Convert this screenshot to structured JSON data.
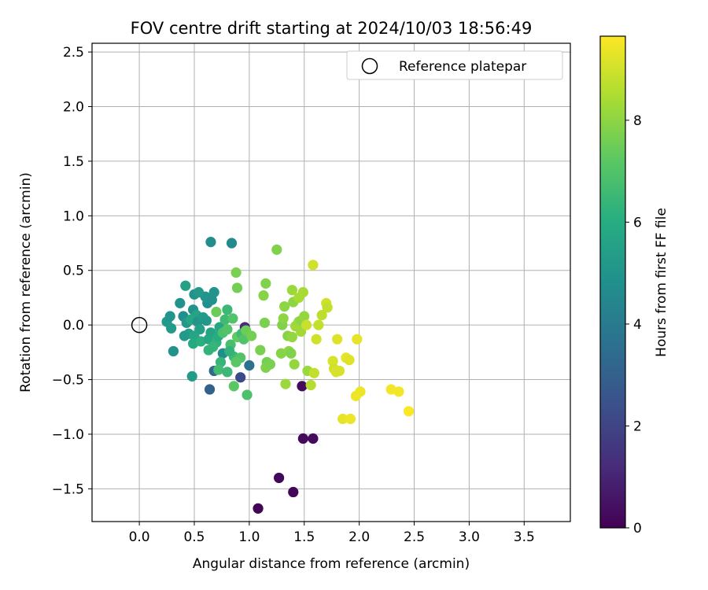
{
  "chart_data": {
    "type": "scatter",
    "title": "FOV centre drift starting at 2024/10/03 18:56:49",
    "xlabel": "Angular distance from reference (arcmin)",
    "ylabel": "Rotation from reference (arcmin)",
    "colorbar_label": "Hours from first FF file",
    "xlim": [
      -0.43,
      3.92
    ],
    "ylim": [
      -1.8,
      2.58
    ],
    "clim": [
      0,
      9.65
    ],
    "x_ticks": [
      0.0,
      0.5,
      1.0,
      1.5,
      2.0,
      2.5,
      3.0,
      3.5
    ],
    "y_ticks": [
      -1.5,
      -1.0,
      -0.5,
      0.0,
      0.5,
      1.0,
      1.5,
      2.0,
      2.5
    ],
    "colorbar_ticks": [
      0,
      2,
      4,
      6,
      8
    ],
    "x_tick_labels": [
      "0.0",
      "0.5",
      "1.0",
      "1.5",
      "2.0",
      "2.5",
      "3.0",
      "3.5"
    ],
    "y_tick_labels": [
      "−1.5",
      "−1.0",
      "−0.5",
      "0.0",
      "0.5",
      "1.0",
      "1.5",
      "2.0",
      "2.5"
    ],
    "colorbar_tick_labels": [
      "0",
      "2",
      "4",
      "6",
      "8"
    ],
    "colormap": "viridis",
    "grid": true,
    "legend": {
      "position": "top-right",
      "entries": [
        "Reference platepar"
      ]
    },
    "reference_point": {
      "x": 0.0,
      "y": 0.0,
      "label": "Reference platepar"
    },
    "points": [
      {
        "x": 1.08,
        "y": -1.68,
        "h": 0.1
      },
      {
        "x": 1.4,
        "y": -1.53,
        "h": 0.15
      },
      {
        "x": 1.27,
        "y": -1.4,
        "h": 0.2
      },
      {
        "x": 1.49,
        "y": -1.04,
        "h": 0.25
      },
      {
        "x": 1.58,
        "y": -1.04,
        "h": 0.3
      },
      {
        "x": 1.48,
        "y": -0.56,
        "h": 0.3
      },
      {
        "x": 0.96,
        "y": -0.02,
        "h": 1.2
      },
      {
        "x": 0.92,
        "y": -0.48,
        "h": 2.2
      },
      {
        "x": 0.64,
        "y": -0.59,
        "h": 3.0
      },
      {
        "x": 0.68,
        "y": -0.42,
        "h": 3.3
      },
      {
        "x": 1.0,
        "y": -0.37,
        "h": 3.6
      },
      {
        "x": 0.65,
        "y": 0.76,
        "h": 4.7
      },
      {
        "x": 0.84,
        "y": 0.75,
        "h": 4.6
      },
      {
        "x": 0.31,
        "y": -0.24,
        "h": 4.9
      },
      {
        "x": 0.48,
        "y": -0.47,
        "h": 5.3
      },
      {
        "x": 0.42,
        "y": 0.36,
        "h": 5.5
      },
      {
        "x": 0.37,
        "y": 0.2,
        "h": 4.9
      },
      {
        "x": 0.25,
        "y": 0.03,
        "h": 5.2
      },
      {
        "x": 0.28,
        "y": 0.08,
        "h": 5.0
      },
      {
        "x": 0.29,
        "y": -0.03,
        "h": 5.3
      },
      {
        "x": 0.4,
        "y": 0.08,
        "h": 4.8
      },
      {
        "x": 0.43,
        "y": 0.02,
        "h": 5.1
      },
      {
        "x": 0.45,
        "y": -0.08,
        "h": 5.4
      },
      {
        "x": 0.41,
        "y": -0.1,
        "h": 5.2
      },
      {
        "x": 0.49,
        "y": 0.14,
        "h": 4.9
      },
      {
        "x": 0.52,
        "y": 0.09,
        "h": 5.6
      },
      {
        "x": 0.47,
        "y": 0.05,
        "h": 5.8
      },
      {
        "x": 0.53,
        "y": 0.03,
        "h": 5.0
      },
      {
        "x": 0.55,
        "y": -0.04,
        "h": 5.5
      },
      {
        "x": 0.5,
        "y": -0.1,
        "h": 5.7
      },
      {
        "x": 0.49,
        "y": -0.17,
        "h": 5.9
      },
      {
        "x": 0.56,
        "y": -0.15,
        "h": 6.1
      },
      {
        "x": 0.58,
        "y": 0.07,
        "h": 5.3
      },
      {
        "x": 0.61,
        "y": 0.04,
        "h": 5.1
      },
      {
        "x": 0.62,
        "y": 0.2,
        "h": 4.8
      },
      {
        "x": 0.6,
        "y": 0.26,
        "h": 5.0
      },
      {
        "x": 0.5,
        "y": 0.28,
        "h": 4.9
      },
      {
        "x": 0.54,
        "y": 0.3,
        "h": 5.2
      },
      {
        "x": 0.66,
        "y": 0.23,
        "h": 4.9
      },
      {
        "x": 0.68,
        "y": 0.3,
        "h": 5.0
      },
      {
        "x": 0.65,
        "y": -0.07,
        "h": 5.6
      },
      {
        "x": 0.63,
        "y": -0.13,
        "h": 5.8
      },
      {
        "x": 0.7,
        "y": -0.16,
        "h": 6.2
      },
      {
        "x": 0.72,
        "y": -0.1,
        "h": 6.0
      },
      {
        "x": 0.67,
        "y": -0.2,
        "h": 6.4
      },
      {
        "x": 0.63,
        "y": -0.23,
        "h": 6.3
      },
      {
        "x": 0.73,
        "y": -0.02,
        "h": 5.7
      },
      {
        "x": 0.78,
        "y": 0.05,
        "h": 6.6
      },
      {
        "x": 0.8,
        "y": 0.14,
        "h": 6.5
      },
      {
        "x": 0.76,
        "y": -0.26,
        "h": 4.7
      },
      {
        "x": 0.74,
        "y": -0.34,
        "h": 6.4
      },
      {
        "x": 0.72,
        "y": -0.41,
        "h": 6.7
      },
      {
        "x": 0.8,
        "y": -0.43,
        "h": 6.5
      },
      {
        "x": 0.83,
        "y": -0.18,
        "h": 6.8
      },
      {
        "x": 0.86,
        "y": -0.29,
        "h": 6.6
      },
      {
        "x": 0.86,
        "y": -0.56,
        "h": 7.2
      },
      {
        "x": 0.82,
        "y": -0.24,
        "h": 6.3
      },
      {
        "x": 0.85,
        "y": 0.06,
        "h": 7.0
      },
      {
        "x": 0.76,
        "y": -0.07,
        "h": 6.9
      },
      {
        "x": 0.8,
        "y": -0.04,
        "h": 7.0
      },
      {
        "x": 0.89,
        "y": -0.11,
        "h": 7.3
      },
      {
        "x": 0.93,
        "y": -0.08,
        "h": 6.6
      },
      {
        "x": 0.92,
        "y": -0.3,
        "h": 7.0
      },
      {
        "x": 0.88,
        "y": -0.34,
        "h": 7.2
      },
      {
        "x": 0.95,
        "y": -0.13,
        "h": 7.0
      },
      {
        "x": 0.98,
        "y": -0.64,
        "h": 6.9
      },
      {
        "x": 0.97,
        "y": -0.05,
        "h": 7.5
      },
      {
        "x": 1.02,
        "y": -0.1,
        "h": 7.6
      },
      {
        "x": 0.88,
        "y": 0.48,
        "h": 7.7
      },
      {
        "x": 0.89,
        "y": 0.34,
        "h": 7.6
      },
      {
        "x": 0.7,
        "y": 0.12,
        "h": 7.5
      },
      {
        "x": 1.1,
        "y": -0.23,
        "h": 7.7
      },
      {
        "x": 1.14,
        "y": 0.02,
        "h": 7.7
      },
      {
        "x": 1.15,
        "y": 0.38,
        "h": 7.8
      },
      {
        "x": 1.13,
        "y": 0.27,
        "h": 7.9
      },
      {
        "x": 1.16,
        "y": -0.34,
        "h": 7.6
      },
      {
        "x": 1.15,
        "y": -0.39,
        "h": 7.8
      },
      {
        "x": 1.19,
        "y": -0.36,
        "h": 7.7
      },
      {
        "x": 1.25,
        "y": 0.69,
        "h": 7.8
      },
      {
        "x": 1.29,
        "y": -0.26,
        "h": 7.9
      },
      {
        "x": 1.3,
        "y": 0.0,
        "h": 7.8
      },
      {
        "x": 1.31,
        "y": 0.06,
        "h": 8.0
      },
      {
        "x": 1.32,
        "y": 0.17,
        "h": 8.0
      },
      {
        "x": 1.33,
        "y": -0.54,
        "h": 8.2
      },
      {
        "x": 1.35,
        "y": -0.1,
        "h": 7.9
      },
      {
        "x": 1.36,
        "y": -0.24,
        "h": 8.0
      },
      {
        "x": 1.38,
        "y": -0.26,
        "h": 7.8
      },
      {
        "x": 1.39,
        "y": -0.11,
        "h": 8.1
      },
      {
        "x": 1.39,
        "y": 0.32,
        "h": 8.2
      },
      {
        "x": 1.4,
        "y": 0.21,
        "h": 8.0
      },
      {
        "x": 1.41,
        "y": -0.36,
        "h": 8.1
      },
      {
        "x": 1.42,
        "y": -0.01,
        "h": 8.3
      },
      {
        "x": 1.45,
        "y": 0.25,
        "h": 8.4
      },
      {
        "x": 1.45,
        "y": 0.03,
        "h": 8.2
      },
      {
        "x": 1.47,
        "y": 0.04,
        "h": 8.0
      },
      {
        "x": 1.47,
        "y": -0.06,
        "h": 8.3
      },
      {
        "x": 1.49,
        "y": 0.3,
        "h": 8.4
      },
      {
        "x": 1.5,
        "y": 0.08,
        "h": 8.1
      },
      {
        "x": 1.52,
        "y": 0.0,
        "h": 8.9
      },
      {
        "x": 1.53,
        "y": -0.42,
        "h": 8.2
      },
      {
        "x": 1.56,
        "y": -0.55,
        "h": 8.6
      },
      {
        "x": 1.58,
        "y": 0.55,
        "h": 9.0
      },
      {
        "x": 1.59,
        "y": -0.44,
        "h": 8.8
      },
      {
        "x": 1.61,
        "y": -0.13,
        "h": 9.0
      },
      {
        "x": 1.63,
        "y": 0.0,
        "h": 8.8
      },
      {
        "x": 1.66,
        "y": 0.09,
        "h": 8.7
      },
      {
        "x": 1.7,
        "y": 0.2,
        "h": 9.0
      },
      {
        "x": 1.71,
        "y": 0.16,
        "h": 8.8
      },
      {
        "x": 1.76,
        "y": -0.33,
        "h": 9.1
      },
      {
        "x": 1.77,
        "y": -0.4,
        "h": 9.0
      },
      {
        "x": 1.79,
        "y": -0.43,
        "h": 9.1
      },
      {
        "x": 1.8,
        "y": -0.13,
        "h": 9.2
      },
      {
        "x": 1.82,
        "y": -0.42,
        "h": 9.1
      },
      {
        "x": 1.85,
        "y": -0.86,
        "h": 9.3
      },
      {
        "x": 1.88,
        "y": -0.3,
        "h": 9.3
      },
      {
        "x": 1.91,
        "y": -0.32,
        "h": 9.2
      },
      {
        "x": 1.92,
        "y": -0.86,
        "h": 9.4
      },
      {
        "x": 1.97,
        "y": -0.65,
        "h": 9.4
      },
      {
        "x": 1.98,
        "y": -0.13,
        "h": 9.3
      },
      {
        "x": 2.01,
        "y": -0.61,
        "h": 9.4
      },
      {
        "x": 2.29,
        "y": -0.59,
        "h": 9.5
      },
      {
        "x": 2.36,
        "y": -0.61,
        "h": 9.5
      },
      {
        "x": 2.45,
        "y": -0.79,
        "h": 9.6
      }
    ]
  }
}
